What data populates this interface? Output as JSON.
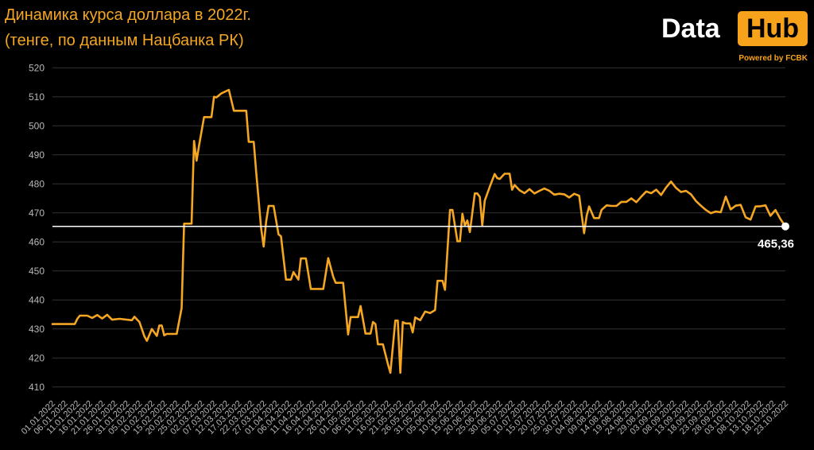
{
  "title": {
    "line1": "Динамика курса доллара в 2022г.",
    "line2": "(тенге, по данным Нацбанка РК)"
  },
  "logo": {
    "word": "Data",
    "boxed": "Hub",
    "tagline": "Powered by FCBK"
  },
  "colors": {
    "background": "#000000",
    "line": "#f5a623",
    "reference_line": "#ffffff",
    "gridline": "#333333",
    "logo_accent": "#f7a21b"
  },
  "chart_data": {
    "type": "line",
    "title": "Динамика курса доллара в 2022г. (тенге, по данным Нацбанка РК)",
    "xlabel": "",
    "ylabel": "",
    "ylim": [
      405,
      522
    ],
    "grid": true,
    "y_ticks": [
      410,
      420,
      430,
      440,
      450,
      460,
      470,
      480,
      490,
      500,
      510,
      520
    ],
    "x_start": "2022-01-01",
    "x_end": "2022-10-23",
    "x_tick_labels": [
      "01.01.2022",
      "06.01.2022",
      "11.01.2022",
      "16.01.2022",
      "21.01.2022",
      "26.01.2022",
      "31.01.2022",
      "05.02.2022",
      "10.02.2022",
      "15.02.2022",
      "20.02.2022",
      "25.02.2022",
      "02.03.2022",
      "07.03.2022",
      "12.03.2022",
      "17.03.2022",
      "22.03.2022",
      "27.03.2022",
      "01.04.2022",
      "06.04.2022",
      "11.04.2022",
      "16.04.2022",
      "21.04.2022",
      "26.04.2022",
      "01.05.2022",
      "06.05.2022",
      "11.05.2022",
      "16.05.2022",
      "21.05.2022",
      "26.05.2022",
      "31.05.2022",
      "05.06.2022",
      "10.06.2022",
      "15.06.2022",
      "20.06.2022",
      "25.06.2022",
      "30.06.2022",
      "05.07.2022",
      "10.07.2022",
      "15.07.2022",
      "20.07.2022",
      "25.07.2022",
      "30.07.2022",
      "04.08.2022",
      "09.08.2022",
      "14.08.2022",
      "19.08.2022",
      "24.08.2022",
      "29.08.2022",
      "03.09.2022",
      "08.09.2022",
      "13.09.2022",
      "18.09.2022",
      "23.09.2022",
      "28.09.2022",
      "03.10.2022",
      "08.10.2022",
      "13.10.2022",
      "18.10.2022",
      "23.10.2022"
    ],
    "series": [
      {
        "values": [
          [
            "2022-01-01",
            431.7
          ],
          [
            "2022-01-10",
            431.7
          ],
          [
            "2022-01-11",
            433.5
          ],
          [
            "2022-01-12",
            434.6
          ],
          [
            "2022-01-15",
            434.6
          ],
          [
            "2022-01-17",
            433.8
          ],
          [
            "2022-01-19",
            434.8
          ],
          [
            "2022-01-21",
            433.6
          ],
          [
            "2022-01-23",
            434.9
          ],
          [
            "2022-01-25",
            433.2
          ],
          [
            "2022-01-28",
            433.5
          ],
          [
            "2022-02-02",
            433.0
          ],
          [
            "2022-02-03",
            434.2
          ],
          [
            "2022-02-05",
            432.4
          ],
          [
            "2022-02-07",
            427.5
          ],
          [
            "2022-02-08",
            425.9
          ],
          [
            "2022-02-10",
            430.0
          ],
          [
            "2022-02-12",
            427.6
          ],
          [
            "2022-02-13",
            431.2
          ],
          [
            "2022-02-14",
            431.2
          ],
          [
            "2022-02-15",
            427.8
          ],
          [
            "2022-02-16",
            428.3
          ],
          [
            "2022-02-20",
            428.3
          ],
          [
            "2022-02-22",
            437.2
          ],
          [
            "2022-02-23",
            466.3
          ],
          [
            "2022-02-26",
            466.3
          ],
          [
            "2022-02-27",
            494.8
          ],
          [
            "2022-02-28",
            488.0
          ],
          [
            "2022-03-01",
            493.2
          ],
          [
            "2022-03-03",
            503.0
          ],
          [
            "2022-03-06",
            503.0
          ],
          [
            "2022-03-07",
            510.0
          ],
          [
            "2022-03-08",
            509.8
          ],
          [
            "2022-03-10",
            511.2
          ],
          [
            "2022-03-13",
            512.4
          ],
          [
            "2022-03-15",
            505.2
          ],
          [
            "2022-03-20",
            505.2
          ],
          [
            "2022-03-21",
            494.5
          ],
          [
            "2022-03-23",
            494.5
          ],
          [
            "2022-03-24",
            484.0
          ],
          [
            "2022-03-26",
            464.7
          ],
          [
            "2022-03-27",
            458.4
          ],
          [
            "2022-03-28",
            467.0
          ],
          [
            "2022-03-29",
            472.4
          ],
          [
            "2022-03-31",
            472.4
          ],
          [
            "2022-04-02",
            462.6
          ],
          [
            "2022-04-03",
            461.9
          ],
          [
            "2022-04-05",
            447.0
          ],
          [
            "2022-04-07",
            447.0
          ],
          [
            "2022-04-08",
            449.6
          ],
          [
            "2022-04-10",
            447.0
          ],
          [
            "2022-04-11",
            454.3
          ],
          [
            "2022-04-13",
            454.3
          ],
          [
            "2022-04-15",
            443.8
          ],
          [
            "2022-04-20",
            443.8
          ],
          [
            "2022-04-22",
            454.4
          ],
          [
            "2022-04-24",
            448.0
          ],
          [
            "2022-04-25",
            445.9
          ],
          [
            "2022-04-28",
            445.9
          ],
          [
            "2022-04-30",
            428.1
          ],
          [
            "2022-05-01",
            434.1
          ],
          [
            "2022-05-04",
            434.1
          ],
          [
            "2022-05-05",
            437.9
          ],
          [
            "2022-05-07",
            428.4
          ],
          [
            "2022-05-09",
            428.4
          ],
          [
            "2022-05-10",
            432.4
          ],
          [
            "2022-05-11",
            431.7
          ],
          [
            "2022-05-12",
            424.7
          ],
          [
            "2022-05-14",
            424.7
          ],
          [
            "2022-05-16",
            418.0
          ],
          [
            "2022-05-17",
            414.9
          ],
          [
            "2022-05-19",
            432.9
          ],
          [
            "2022-05-20",
            432.9
          ],
          [
            "2022-05-21",
            414.9
          ],
          [
            "2022-05-22",
            432.4
          ],
          [
            "2022-05-23",
            431.9
          ],
          [
            "2022-05-25",
            431.9
          ],
          [
            "2022-05-26",
            428.8
          ],
          [
            "2022-05-27",
            434.0
          ],
          [
            "2022-05-29",
            433.0
          ],
          [
            "2022-05-31",
            436.0
          ],
          [
            "2022-06-02",
            435.5
          ],
          [
            "2022-06-04",
            436.5
          ],
          [
            "2022-06-05",
            446.6
          ],
          [
            "2022-06-07",
            446.6
          ],
          [
            "2022-06-08",
            443.5
          ],
          [
            "2022-06-10",
            471.0
          ],
          [
            "2022-06-11",
            471.0
          ],
          [
            "2022-06-13",
            460.2
          ],
          [
            "2022-06-14",
            460.2
          ],
          [
            "2022-06-15",
            469.7
          ],
          [
            "2022-06-16",
            465.6
          ],
          [
            "2022-06-17",
            467.4
          ],
          [
            "2022-06-18",
            463.4
          ],
          [
            "2022-06-20",
            476.7
          ],
          [
            "2022-06-21",
            476.7
          ],
          [
            "2022-06-22",
            475.5
          ],
          [
            "2022-06-23",
            465.6
          ],
          [
            "2022-06-24",
            474.2
          ],
          [
            "2022-06-26",
            479.0
          ],
          [
            "2022-06-28",
            483.4
          ],
          [
            "2022-06-29",
            482.0
          ],
          [
            "2022-06-30",
            481.7
          ],
          [
            "2022-07-02",
            483.5
          ],
          [
            "2022-07-04",
            483.5
          ],
          [
            "2022-07-05",
            478.0
          ],
          [
            "2022-07-06",
            479.6
          ],
          [
            "2022-07-08",
            477.8
          ],
          [
            "2022-07-10",
            476.8
          ],
          [
            "2022-07-12",
            478.2
          ],
          [
            "2022-07-14",
            476.7
          ],
          [
            "2022-07-16",
            477.6
          ],
          [
            "2022-07-18",
            478.4
          ],
          [
            "2022-07-20",
            477.6
          ],
          [
            "2022-07-22",
            476.3
          ],
          [
            "2022-07-24",
            476.6
          ],
          [
            "2022-07-26",
            476.4
          ],
          [
            "2022-07-28",
            475.3
          ],
          [
            "2022-07-30",
            476.6
          ],
          [
            "2022-08-01",
            475.9
          ],
          [
            "2022-08-03",
            463.0
          ],
          [
            "2022-08-04",
            469.0
          ],
          [
            "2022-08-05",
            472.2
          ],
          [
            "2022-08-07",
            468.2
          ],
          [
            "2022-08-09",
            468.2
          ],
          [
            "2022-08-10",
            471.0
          ],
          [
            "2022-08-12",
            472.6
          ],
          [
            "2022-08-14",
            472.4
          ],
          [
            "2022-08-16",
            472.4
          ],
          [
            "2022-08-18",
            473.8
          ],
          [
            "2022-08-20",
            473.8
          ],
          [
            "2022-08-22",
            475.0
          ],
          [
            "2022-08-24",
            473.7
          ],
          [
            "2022-08-26",
            475.6
          ],
          [
            "2022-08-28",
            477.4
          ],
          [
            "2022-08-30",
            476.8
          ],
          [
            "2022-09-01",
            478.0
          ],
          [
            "2022-09-03",
            476.2
          ],
          [
            "2022-09-05",
            478.8
          ],
          [
            "2022-09-07",
            480.8
          ],
          [
            "2022-09-09",
            478.6
          ],
          [
            "2022-09-11",
            477.2
          ],
          [
            "2022-09-13",
            477.6
          ],
          [
            "2022-09-15",
            476.4
          ],
          [
            "2022-09-17",
            474.1
          ],
          [
            "2022-09-19",
            472.5
          ],
          [
            "2022-09-21",
            471.0
          ],
          [
            "2022-09-23",
            469.9
          ],
          [
            "2022-09-25",
            470.5
          ],
          [
            "2022-09-27",
            470.2
          ],
          [
            "2022-09-29",
            475.6
          ],
          [
            "2022-10-01",
            471.2
          ],
          [
            "2022-10-03",
            472.5
          ],
          [
            "2022-10-05",
            472.8
          ],
          [
            "2022-10-07",
            468.5
          ],
          [
            "2022-10-09",
            467.7
          ],
          [
            "2022-10-11",
            472.2
          ],
          [
            "2022-10-13",
            472.3
          ],
          [
            "2022-10-15",
            472.6
          ],
          [
            "2022-10-17",
            469.0
          ],
          [
            "2022-10-19",
            471.0
          ],
          [
            "2022-10-21",
            467.9
          ],
          [
            "2022-10-23",
            465.36
          ]
        ]
      }
    ],
    "reference_line": {
      "value": 465.36,
      "label": "465,36"
    }
  }
}
